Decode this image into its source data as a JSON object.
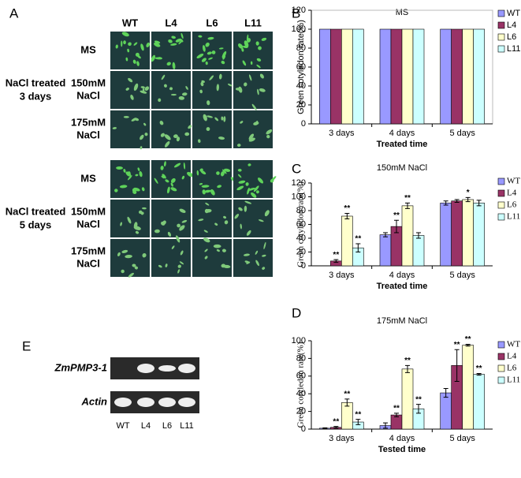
{
  "panel_a": {
    "label": "A",
    "columns": [
      "WT",
      "L4",
      "L6",
      "L11"
    ],
    "groups": [
      {
        "title": [
          "NaCl treated",
          "3 days"
        ],
        "rows": [
          [
            "MS"
          ],
          [
            "150mM",
            "NaCl"
          ],
          [
            "175mM",
            "NaCl"
          ]
        ]
      },
      {
        "title": [
          "NaCl treated",
          "5 days"
        ],
        "rows": [
          [
            "MS"
          ],
          [
            "150mM",
            "NaCl"
          ],
          [
            "175mM",
            "NaCl"
          ]
        ]
      }
    ]
  },
  "panel_e": {
    "label": "E",
    "genes": [
      "ZmPMP3-1",
      "Actin"
    ],
    "lanes": [
      "WT",
      "L4",
      "L6",
      "L11"
    ]
  },
  "chart_data": [
    {
      "label": "B",
      "type": "bar",
      "title": "MS",
      "ylabel": "Green cotyledon rate(%)",
      "xlabel": "Treated time",
      "categories": [
        "3 days",
        "4 days",
        "5 days"
      ],
      "ylim": [
        0,
        120
      ],
      "yticks": [
        0,
        20,
        40,
        60,
        80,
        100,
        120
      ],
      "series": [
        {
          "name": "WT",
          "color": "#9999ff",
          "values": [
            100,
            100,
            100
          ]
        },
        {
          "name": "L4",
          "color": "#993366",
          "values": [
            100,
            100,
            100
          ]
        },
        {
          "name": "L6",
          "color": "#ffffcc",
          "values": [
            100,
            100,
            100
          ]
        },
        {
          "name": "L11",
          "color": "#ccffff",
          "values": [
            100,
            100,
            100
          ]
        }
      ]
    },
    {
      "label": "C",
      "type": "bar",
      "title": "150mM NaCl",
      "ylabel": "Green cotyledon rate(%)",
      "xlabel": "Treated time",
      "categories": [
        "3 days",
        "4 days",
        "5 days"
      ],
      "ylim": [
        0,
        120
      ],
      "yticks": [
        0,
        20,
        40,
        60,
        80,
        100,
        120
      ],
      "series": [
        {
          "name": "WT",
          "color": "#9999ff",
          "values": [
            0,
            45,
            91
          ],
          "errors": [
            0,
            3,
            3
          ],
          "sig": [
            null,
            null,
            null
          ]
        },
        {
          "name": "L4",
          "color": "#993366",
          "values": [
            7,
            57,
            94
          ],
          "errors": [
            2,
            9,
            2
          ],
          "sig": [
            "**",
            "**",
            null
          ]
        },
        {
          "name": "L6",
          "color": "#ffffcc",
          "values": [
            72,
            87,
            96
          ],
          "errors": [
            4,
            4,
            3
          ],
          "sig": [
            "**",
            "**",
            "*"
          ]
        },
        {
          "name": "L11",
          "color": "#ccffff",
          "values": [
            26,
            44,
            91
          ],
          "errors": [
            6,
            4,
            4
          ],
          "sig": [
            "**",
            null,
            null
          ]
        }
      ]
    },
    {
      "label": "D",
      "type": "bar",
      "title": "175mM NaCl",
      "ylabel": "Green cotyledon rate(%)",
      "xlabel": "Tested time",
      "categories": [
        "3 days",
        "4 days",
        "5 days"
      ],
      "ylim": [
        0,
        100
      ],
      "yticks": [
        0,
        20,
        40,
        60,
        80,
        100
      ],
      "series": [
        {
          "name": "WT",
          "color": "#9999ff",
          "values": [
            1,
            4,
            41
          ],
          "errors": [
            0.5,
            3,
            5
          ],
          "sig": [
            null,
            null,
            null
          ]
        },
        {
          "name": "L4",
          "color": "#993366",
          "values": [
            2,
            16,
            72
          ],
          "errors": [
            1,
            2,
            18
          ],
          "sig": [
            "**",
            "**",
            "**"
          ]
        },
        {
          "name": "L6",
          "color": "#ffffcc",
          "values": [
            30,
            68,
            95
          ],
          "errors": [
            4,
            4,
            1
          ],
          "sig": [
            "**",
            "**",
            "**"
          ]
        },
        {
          "name": "L11",
          "color": "#ccffff",
          "values": [
            8,
            23,
            62
          ],
          "errors": [
            3,
            5,
            1
          ],
          "sig": [
            "**",
            "**",
            "**"
          ]
        }
      ]
    }
  ]
}
